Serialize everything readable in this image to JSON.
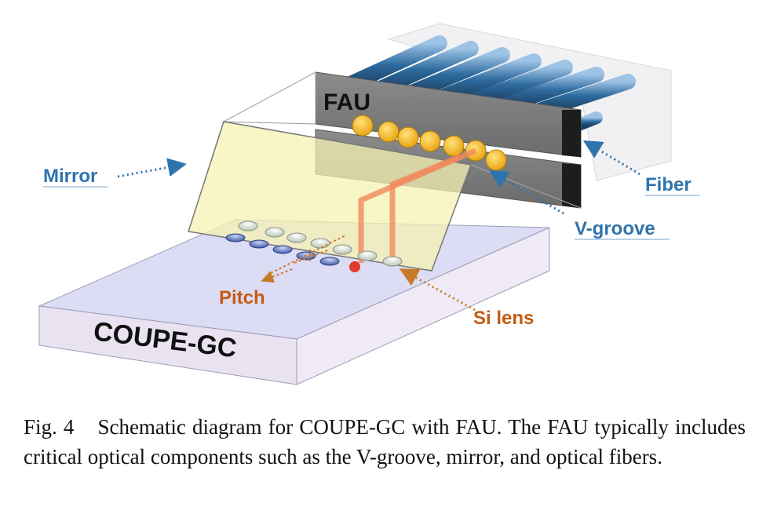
{
  "labels": {
    "fau": "FAU",
    "mirror": "Mirror",
    "fiber": "Fiber",
    "vgroove": "V-groove",
    "pitch": "Pitch",
    "si_lens": "Si lens",
    "chip": "COUPE-GC"
  },
  "caption": {
    "number": "Fig. 4",
    "text": "Schematic diagram for COUPE-GC with FAU. The FAU typically includes critical optical components such as the V-groove, mirror, and optical fibers."
  },
  "colors": {
    "blue_label": "#2f73ad",
    "orange_label": "#c55a11",
    "chip_top": "#d9d9f2",
    "chip_side": "#e6dff0",
    "mirror_fill": "#f4f0b8",
    "fiber_core": "#f5b81f",
    "beam": "#f08a5d"
  }
}
